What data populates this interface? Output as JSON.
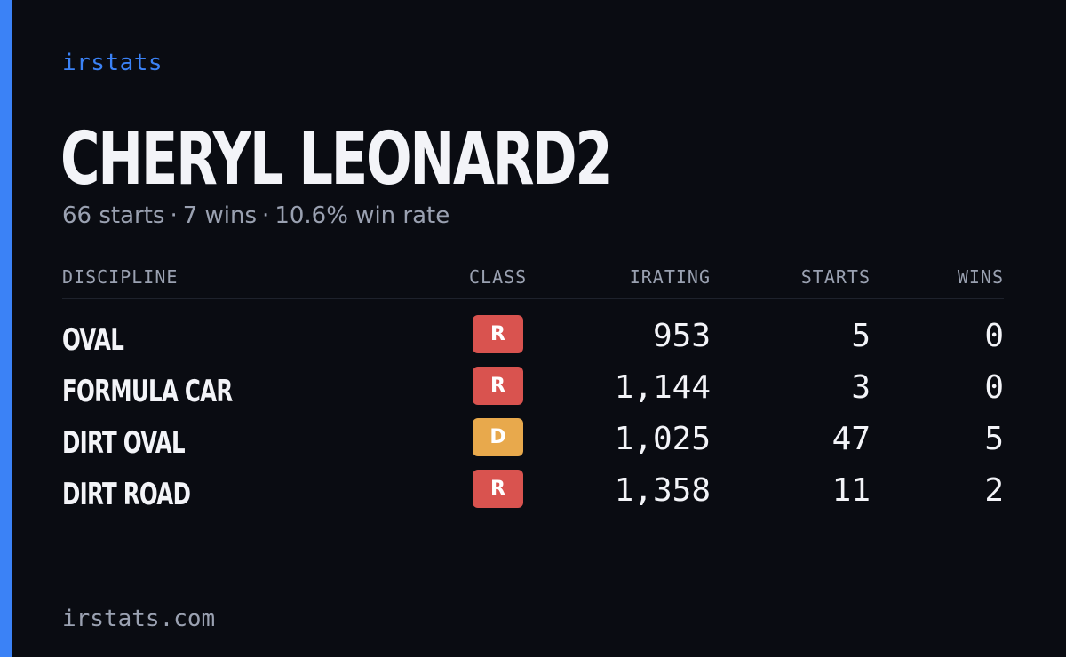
{
  "brand": "irstats",
  "player": {
    "name": "CHERYL LEONARD2",
    "starts": "66 starts",
    "wins": "7 wins",
    "win_rate": "10.6% win rate",
    "separator": "·"
  },
  "table": {
    "headers": {
      "discipline": "DISCIPLINE",
      "class": "CLASS",
      "irating": "IRATING",
      "starts": "STARTS",
      "wins": "WINS"
    },
    "rows": [
      {
        "discipline": "OVAL",
        "class": "R",
        "class_color": "#d9534f",
        "irating": "953",
        "starts": "5",
        "wins": "0"
      },
      {
        "discipline": "FORMULA CAR",
        "class": "R",
        "class_color": "#d9534f",
        "irating": "1,144",
        "starts": "3",
        "wins": "0"
      },
      {
        "discipline": "DIRT OVAL",
        "class": "D",
        "class_color": "#e8a94c",
        "irating": "1,025",
        "starts": "47",
        "wins": "5"
      },
      {
        "discipline": "DIRT ROAD",
        "class": "R",
        "class_color": "#d9534f",
        "irating": "1,358",
        "starts": "11",
        "wins": "2"
      }
    ]
  },
  "footer": {
    "url": "irstats.com"
  },
  "colors": {
    "accent": "#3b82f6",
    "background": "#0a0c12",
    "class_r": "#d9534f",
    "class_d": "#e8a94c"
  }
}
